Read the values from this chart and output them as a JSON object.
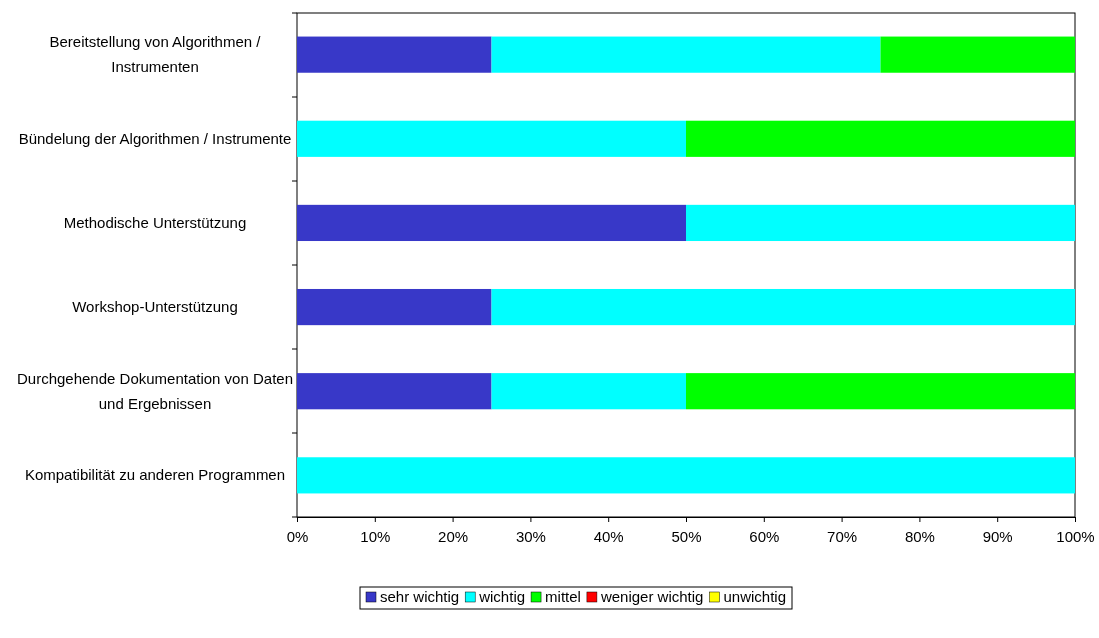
{
  "chart_data": {
    "type": "bar",
    "orientation": "horizontal",
    "stacked": true,
    "categories": [
      "Bereitstellung von Algorithmen / Instrumenten",
      "Bündelung der Algorithmen / Instrumente",
      "Methodische Unterstützung",
      "Workshop-Unterstützung",
      "Durchgehende Dokumentation von Daten und Ergebnissen",
      "Kompatibilität zu anderen Programmen"
    ],
    "series": [
      {
        "name": "sehr wichtig",
        "color": "#3838c8",
        "values": [
          25,
          0,
          50,
          25,
          25,
          0
        ]
      },
      {
        "name": "wichtig",
        "color": "#00ffff",
        "values": [
          50,
          50,
          50,
          75,
          25,
          100
        ]
      },
      {
        "name": "mittel",
        "color": "#00ff00",
        "values": [
          25,
          50,
          0,
          0,
          50,
          0
        ]
      },
      {
        "name": "weniger wichtig",
        "color": "#ff0000",
        "values": [
          0,
          0,
          0,
          0,
          0,
          0
        ]
      },
      {
        "name": "unwichtig",
        "color": "#ffff00",
        "values": [
          0,
          0,
          0,
          0,
          0,
          0
        ]
      }
    ],
    "xlim": [
      0,
      100
    ],
    "xticks": [
      {
        "value": 0,
        "label": "0%"
      },
      {
        "value": 10,
        "label": "10%"
      },
      {
        "value": 20,
        "label": "20%"
      },
      {
        "value": 30,
        "label": "30%"
      },
      {
        "value": 40,
        "label": "40%"
      },
      {
        "value": 50,
        "label": "50%"
      },
      {
        "value": 60,
        "label": "60%"
      },
      {
        "value": 70,
        "label": "70%"
      },
      {
        "value": 80,
        "label": "80%"
      },
      {
        "value": 90,
        "label": "90%"
      },
      {
        "value": 100,
        "label": "100%"
      }
    ],
    "legend": "bottom"
  }
}
